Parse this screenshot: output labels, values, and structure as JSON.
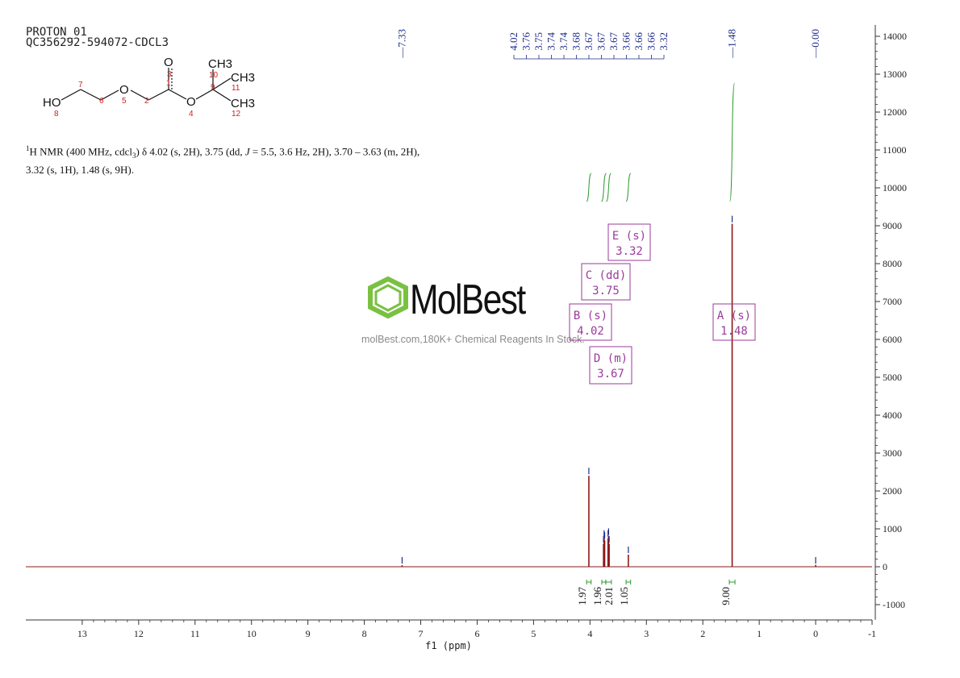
{
  "header": {
    "experiment": "PROTON_01",
    "sample": "QC356292-594072-CDCL3"
  },
  "description": {
    "lead": "H NMR (400 MHz, cdcl",
    "sup": "1",
    "sub": "3",
    "line1_rest": ") δ 4.02 (s, 2H), 3.75 (dd, ",
    "j_label": "J",
    "line1_end": " = 5.5, 3.6 Hz, 2H), 3.70 – 3.63 (m, 2H),",
    "line2": "3.32 (s, 1H), 1.48 (s, 9H)."
  },
  "structure": {
    "atoms": [
      "HO",
      "O",
      "O",
      "O",
      "CH3",
      "CH3",
      "CH3"
    ],
    "numbers": [
      "1",
      "2",
      "3",
      "4",
      "5",
      "6",
      "7",
      "8",
      "9",
      "10",
      "11",
      "12"
    ]
  },
  "watermark": {
    "brand": "MolBest",
    "tagline": "molBest.com,180K+ Chemical Reagents In Stock."
  },
  "colors": {
    "spectrum": "#8b1a1a",
    "peak_label": "#1f2c8a",
    "integral": "#2e9b2e",
    "annotation": "#9b3b9b",
    "axis": "#333333",
    "logo_green": "#7ac142"
  },
  "chart_data": {
    "type": "line",
    "xlabel": "f1 (ppm)",
    "x_ticks": [
      "13",
      "12",
      "11",
      "10",
      "9",
      "8",
      "7",
      "6",
      "5",
      "4",
      "3",
      "2",
      "1",
      "0",
      "-1"
    ],
    "x_tick_values": [
      13,
      12,
      11,
      10,
      9,
      8,
      7,
      6,
      5,
      4,
      3,
      2,
      1,
      0,
      -1
    ],
    "xlim": [
      14,
      -1
    ],
    "y_ticks": [
      "14000",
      "13000",
      "12000",
      "11000",
      "10000",
      "9000",
      "8000",
      "7000",
      "6000",
      "5000",
      "4000",
      "3000",
      "2000",
      "1000",
      "0",
      "-1000"
    ],
    "y_tick_values": [
      14000,
      13000,
      12000,
      11000,
      10000,
      9000,
      8000,
      7000,
      6000,
      5000,
      4000,
      3000,
      2000,
      1000,
      0,
      -1000
    ],
    "ylim": [
      -1400,
      14300
    ],
    "peaks": [
      {
        "ppm": 4.02,
        "height": 2400
      },
      {
        "ppm": 3.76,
        "height": 600
      },
      {
        "ppm": 3.75,
        "height": 750
      },
      {
        "ppm": 3.74,
        "height": 700
      },
      {
        "ppm": 3.68,
        "height": 750
      },
      {
        "ppm": 3.67,
        "height": 800
      },
      {
        "ppm": 3.66,
        "height": 600
      },
      {
        "ppm": 3.32,
        "height": 320
      },
      {
        "ppm": 1.48,
        "height": 9050
      },
      {
        "ppm": 7.33,
        "height": 40
      },
      {
        "ppm": 0.0,
        "height": 50
      }
    ],
    "peak_labels_group": [
      "4.02",
      "3.76",
      "3.75",
      "3.74",
      "3.74",
      "3.68",
      "3.67",
      "3.67",
      "3.67",
      "3.66",
      "3.66",
      "3.66",
      "3.32"
    ],
    "peak_labels_single": [
      {
        "ppm": 7.33,
        "label": "7.33"
      },
      {
        "ppm": 1.48,
        "label": "1.48"
      },
      {
        "ppm": 0.0,
        "label": "0.00"
      }
    ],
    "integrals": [
      {
        "from": 4.06,
        "to": 3.98,
        "value": "1.97"
      },
      {
        "from": 3.79,
        "to": 3.72,
        "value": "1.96"
      },
      {
        "from": 3.72,
        "to": 3.62,
        "value": "2.01"
      },
      {
        "from": 3.36,
        "to": 3.28,
        "value": "1.05"
      },
      {
        "from": 1.53,
        "to": 1.43,
        "value": "9.00"
      }
    ],
    "multiplets": [
      {
        "id": "A",
        "type": "s",
        "shift": "1.48"
      },
      {
        "id": "B",
        "type": "s",
        "shift": "4.02"
      },
      {
        "id": "C",
        "type": "dd",
        "shift": "3.75"
      },
      {
        "id": "D",
        "type": "m",
        "shift": "3.67"
      },
      {
        "id": "E",
        "type": "s",
        "shift": "3.32"
      }
    ]
  }
}
